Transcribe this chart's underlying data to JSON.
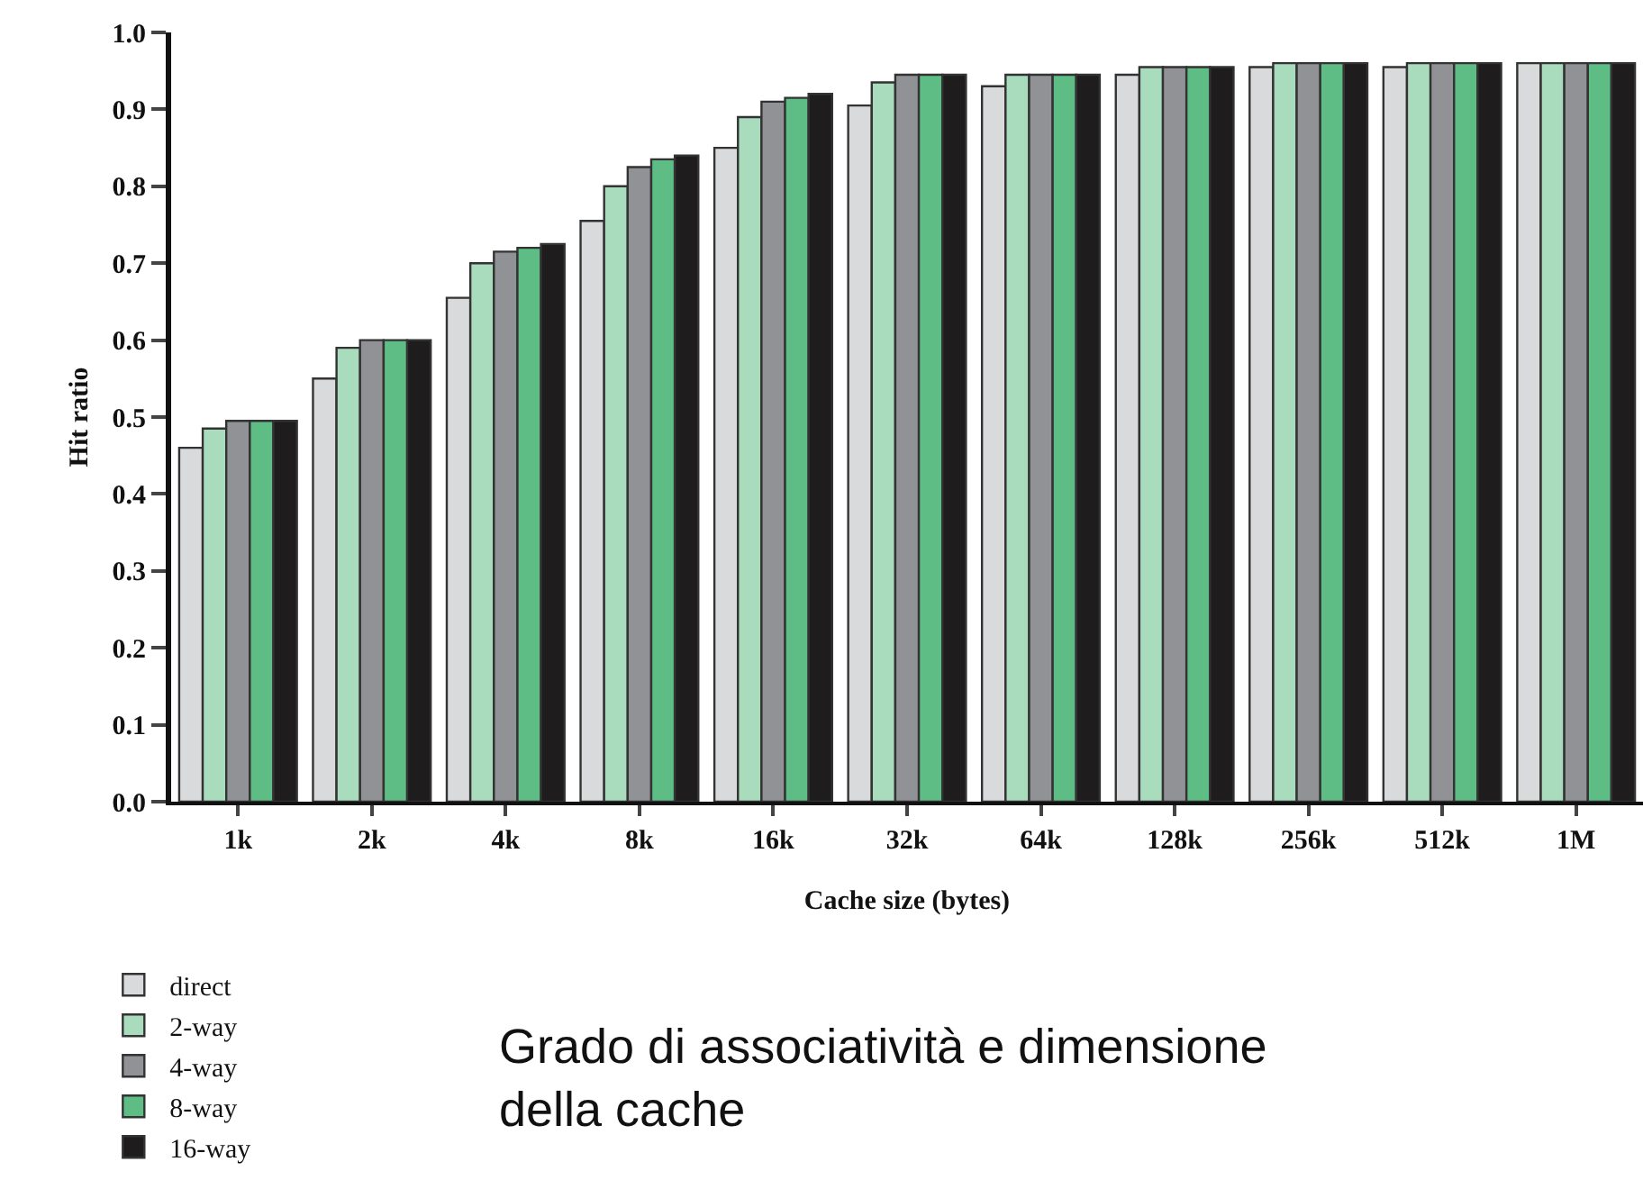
{
  "chart_data": {
    "type": "bar",
    "xlabel": "Cache size (bytes)",
    "ylabel": "Hit ratio",
    "categories": [
      "1k",
      "2k",
      "4k",
      "8k",
      "16k",
      "32k",
      "64k",
      "128k",
      "256k",
      "512k",
      "1M"
    ],
    "series": [
      {
        "name": "direct",
        "color": "#d9dadc",
        "values": [
          0.46,
          0.55,
          0.655,
          0.755,
          0.85,
          0.905,
          0.93,
          0.945,
          0.955,
          0.955,
          0.96
        ]
      },
      {
        "name": "2-way",
        "color": "#a9dcbd",
        "values": [
          0.485,
          0.59,
          0.7,
          0.8,
          0.89,
          0.935,
          0.945,
          0.955,
          0.96,
          0.96,
          0.96
        ]
      },
      {
        "name": "4-way",
        "color": "#919296",
        "values": [
          0.495,
          0.6,
          0.715,
          0.825,
          0.91,
          0.945,
          0.945,
          0.955,
          0.96,
          0.96,
          0.96
        ]
      },
      {
        "name": "8-way",
        "color": "#5dbd85",
        "values": [
          0.495,
          0.6,
          0.72,
          0.835,
          0.915,
          0.945,
          0.945,
          0.955,
          0.96,
          0.96,
          0.96
        ]
      },
      {
        "name": "16-way",
        "color": "#1e1c1d",
        "values": [
          0.495,
          0.6,
          0.725,
          0.84,
          0.92,
          0.945,
          0.945,
          0.955,
          0.96,
          0.96,
          0.96
        ]
      }
    ],
    "ylim": [
      0,
      1.0
    ],
    "yticks": [
      {
        "value": 0,
        "label": "0.0"
      },
      0.1,
      0.2,
      0.3,
      0.4,
      0.5,
      0.6,
      0.7,
      0.8,
      0.9,
      {
        "value": 1.0,
        "label": "1.0"
      }
    ],
    "legend": "bottom left",
    "annotations": [
      "Grado di associatività e dimensione della cache"
    ]
  }
}
